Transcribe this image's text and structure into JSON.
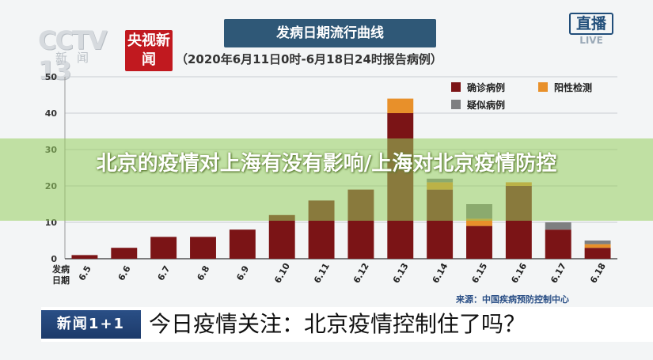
{
  "header": {
    "channel_logo": "CCTV 13",
    "channel_logo_sub": "新闻",
    "news_badge": "央视新闻",
    "chart_title": "发病日期流行曲线",
    "chart_subtitle": "（2020年6月11日0时-6月18日24时报告病例）",
    "live_badge": "直播",
    "live_badge_sub": "LIVE"
  },
  "overlay": {
    "text": "北京的疫情对上海有没有影响/上海对北京疫情防控"
  },
  "source": "来源：中国疾病预防控制中心",
  "bottom": {
    "tag": "新闻1+1",
    "headline": "今日疫情关注：北京疫情控制住了吗？"
  },
  "colors": {
    "confirmed": "#7b1416",
    "positive": "#e8902a",
    "suspected": "#7e7f81",
    "title_bg": "#2f5877",
    "news_red": "#c1191f"
  },
  "chart_data": {
    "type": "bar",
    "stacked": true,
    "title": "发病日期流行曲线",
    "subtitle": "（2020年6月11日0时-6月18日24时报告病例）",
    "xlabel": "发病日期",
    "ylabel": "",
    "ylim": [
      0,
      50
    ],
    "yticks": [
      0,
      10,
      20,
      30,
      40,
      50
    ],
    "categories": [
      "6.5",
      "6.6",
      "6.7",
      "6.8",
      "6.9",
      "6.10",
      "6.11",
      "6.12",
      "6.13",
      "6.14",
      "6.15",
      "6.16",
      "6.17",
      "6.18"
    ],
    "series": [
      {
        "name": "确诊病例",
        "color": "#7b1416",
        "values": [
          1,
          3,
          6,
          6,
          8,
          12,
          16,
          19,
          40,
          19,
          9,
          20,
          8,
          3
        ]
      },
      {
        "name": "阳性检测",
        "color": "#e8902a",
        "values": [
          0,
          0,
          0,
          0,
          0,
          0,
          0,
          0,
          4,
          2,
          2,
          1,
          0,
          1
        ]
      },
      {
        "name": "疑似病例",
        "color": "#7e7f81",
        "values": [
          0,
          0,
          0,
          0,
          0,
          0,
          0,
          0,
          0,
          1,
          4,
          0,
          2,
          1
        ]
      }
    ],
    "grid": true,
    "legend": "top-right"
  }
}
